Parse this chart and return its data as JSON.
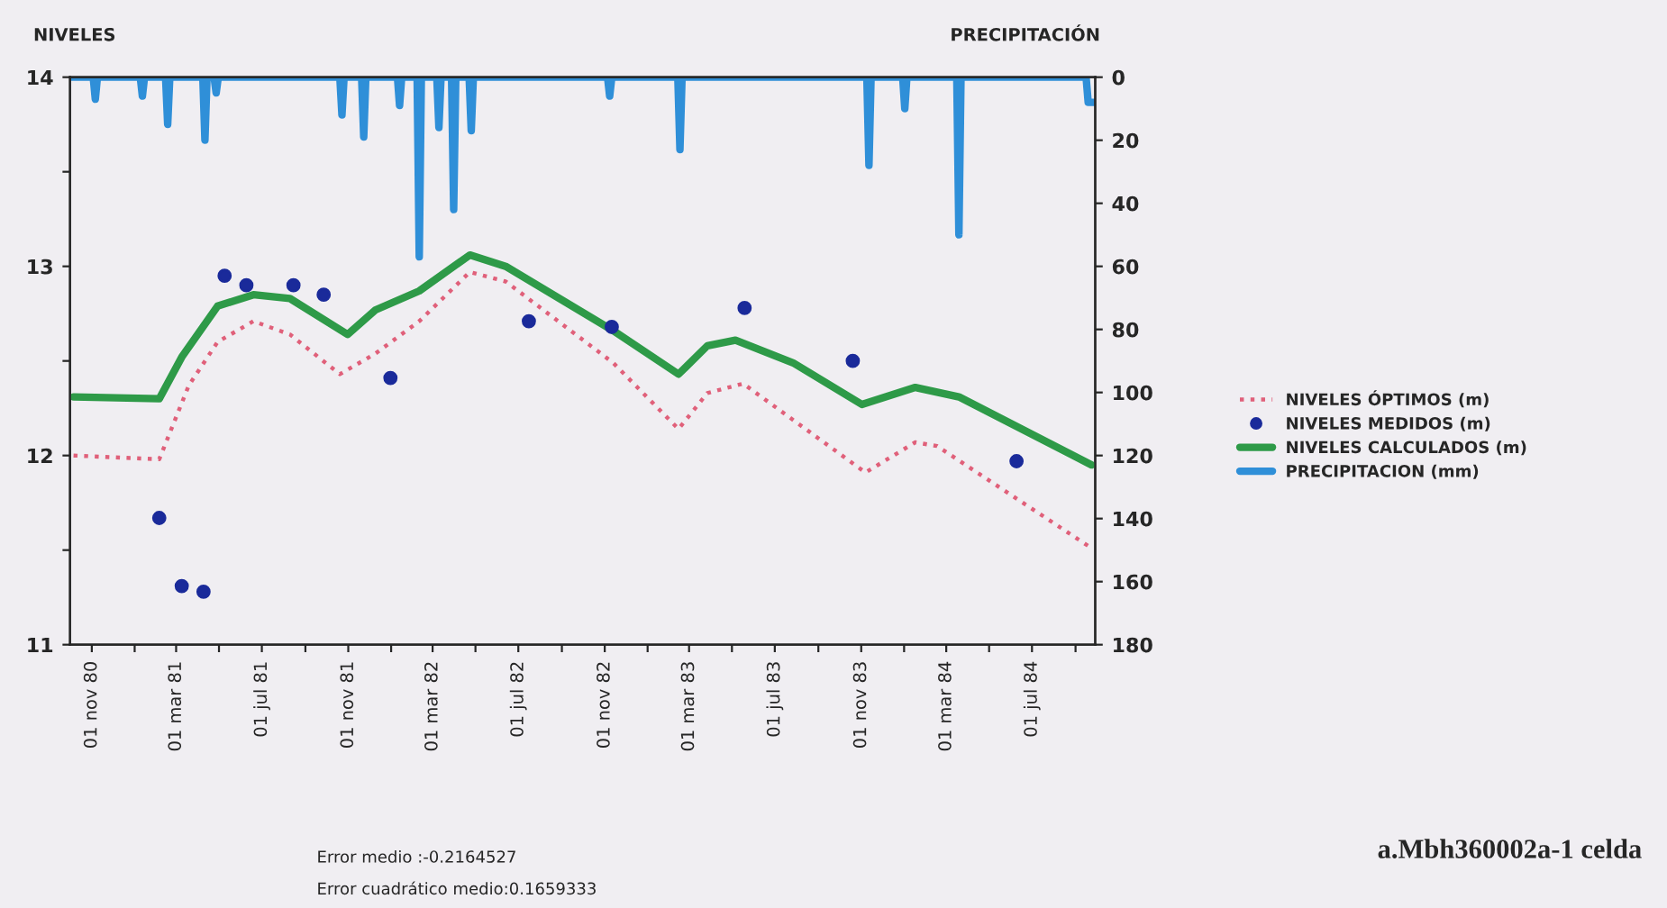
{
  "chart_data": {
    "type": "line",
    "ylabel": "NIVELES",
    "y2label": "PRECIPITACIÓN",
    "series": [
      {
        "name": "NIVELES ÓPTIMOS (m)",
        "color": "#e0607a",
        "line_style": "dotted",
        "marker": "none",
        "x": [
          "1980-10-06",
          "1981-02-05",
          "1981-03-19",
          "1981-04-29",
          "1981-06-19",
          "1981-08-10",
          "1981-10-20",
          "1981-12-10",
          "1982-02-10",
          "1982-04-23",
          "1982-06-13",
          "1982-11-13",
          "1983-02-14",
          "1983-03-27",
          "1983-05-17",
          "1983-11-07",
          "1984-01-17",
          "1984-02-17",
          "1984-09-24"
        ],
        "values": [
          12.0,
          11.98,
          12.37,
          12.6,
          12.71,
          12.64,
          12.43,
          12.54,
          12.71,
          12.97,
          12.92,
          12.49,
          12.14,
          12.33,
          12.38,
          11.91,
          12.07,
          12.05,
          11.51
        ]
      },
      {
        "name": "NIVELES MEDIDOS (m)",
        "type": "scatter",
        "color": "#1a2a9a",
        "marker": "circle",
        "x": [
          "1981-02-05",
          "1981-03-09",
          "1981-04-09",
          "1981-05-09",
          "1981-06-09",
          "1981-08-15",
          "1981-09-27",
          "1981-12-31",
          "1982-07-16",
          "1982-11-11",
          "1983-05-19",
          "1983-10-20",
          "1984-06-09"
        ],
        "values": [
          11.67,
          11.31,
          11.28,
          12.95,
          12.9,
          12.9,
          12.85,
          12.41,
          12.71,
          12.68,
          12.78,
          12.5,
          11.97
        ]
      },
      {
        "name": "NIVELES CALCULADOS (m)",
        "color": "#2e9a48",
        "line_style": "solid",
        "marker": "none",
        "x": [
          "1980-10-06",
          "1981-02-05",
          "1981-03-09",
          "1981-04-29",
          "1981-06-19",
          "1981-08-10",
          "1981-10-31",
          "1981-12-10",
          "1982-02-10",
          "1982-04-23",
          "1982-06-13",
          "1982-11-13",
          "1983-02-14",
          "1983-03-27",
          "1983-05-06",
          "1983-07-27",
          "1983-11-02",
          "1984-01-17",
          "1984-03-19",
          "1984-09-24"
        ],
        "values": [
          12.31,
          12.3,
          12.52,
          12.79,
          12.85,
          12.83,
          12.64,
          12.77,
          12.87,
          13.06,
          13.0,
          12.66,
          12.43,
          12.58,
          12.61,
          12.49,
          12.27,
          12.36,
          12.31,
          11.95
        ]
      },
      {
        "name": "PRECIPITACION (mm)",
        "axis": "y2",
        "color": "#2f8fd8",
        "line_style": "solid",
        "marker": "none",
        "x": [
          "1980-10-01",
          "1980-11-03",
          "1980-11-06",
          "1980-11-09",
          "1981-01-09",
          "1981-01-12",
          "1981-01-15",
          "1981-02-14",
          "1981-02-17",
          "1981-02-20",
          "1981-04-08",
          "1981-04-11",
          "1981-04-14",
          "1981-04-24",
          "1981-04-27",
          "1981-04-30",
          "1981-10-20",
          "1981-10-23",
          "1981-10-26",
          "1981-11-20",
          "1981-11-23",
          "1981-11-26",
          "1982-01-10",
          "1982-01-13",
          "1982-01-16",
          "1982-02-07",
          "1982-02-10",
          "1982-02-13",
          "1982-03-07",
          "1982-03-10",
          "1982-03-13",
          "1982-03-28",
          "1982-03-31",
          "1982-04-03",
          "1982-04-22",
          "1982-04-25",
          "1982-04-28",
          "1982-11-05",
          "1982-11-08",
          "1982-11-11",
          "1983-02-13",
          "1983-02-16",
          "1983-02-19",
          "1983-11-09",
          "1983-11-12",
          "1983-11-15",
          "1983-12-30",
          "1984-01-02",
          "1984-01-05",
          "1984-03-16",
          "1984-03-19",
          "1984-03-22",
          "1984-09-16",
          "1984-09-19",
          "1984-09-29"
        ],
        "values": [
          0,
          0,
          7,
          0,
          0,
          6,
          0,
          0,
          15,
          0,
          0,
          20,
          0,
          0,
          5,
          0,
          0,
          12,
          0,
          0,
          19,
          0,
          0,
          9,
          0,
          0,
          57,
          0,
          0,
          16,
          0,
          0,
          42,
          0,
          0,
          17,
          0,
          0,
          6,
          0,
          0,
          23,
          0,
          0,
          28,
          0,
          0,
          10,
          0,
          0,
          50,
          0,
          0,
          8,
          8
        ]
      }
    ],
    "xlim": [
      "1980-10-01",
      "1984-09-29"
    ],
    "xticks": [
      {
        "value": "1980-11-01",
        "label": "01 nov 80"
      },
      {
        "value": "1981-01-01",
        "label": null
      },
      {
        "value": "1981-03-01",
        "label": "01 mar 81"
      },
      {
        "value": "1981-05-01",
        "label": null
      },
      {
        "value": "1981-07-01",
        "label": "01 jul 81"
      },
      {
        "value": "1981-09-01",
        "label": null
      },
      {
        "value": "1981-11-01",
        "label": "01 nov 81"
      },
      {
        "value": "1982-01-01",
        "label": null
      },
      {
        "value": "1982-03-01",
        "label": "01 mar 82"
      },
      {
        "value": "1982-05-01",
        "label": null
      },
      {
        "value": "1982-07-01",
        "label": "01 jul 82"
      },
      {
        "value": "1982-09-01",
        "label": null
      },
      {
        "value": "1982-11-01",
        "label": "01 nov 82"
      },
      {
        "value": "1983-01-01",
        "label": null
      },
      {
        "value": "1983-03-01",
        "label": "01 mar 83"
      },
      {
        "value": "1983-05-01",
        "label": null
      },
      {
        "value": "1983-07-01",
        "label": "01 jul 83"
      },
      {
        "value": "1983-09-01",
        "label": null
      },
      {
        "value": "1983-11-01",
        "label": "01 nov 83"
      },
      {
        "value": "1984-01-01",
        "label": null
      },
      {
        "value": "1984-03-01",
        "label": "01 mar 84"
      },
      {
        "value": "1984-05-01",
        "label": null
      },
      {
        "value": "1984-07-01",
        "label": "01 jul 84"
      },
      {
        "value": "1984-09-01",
        "label": null
      }
    ],
    "ylim": [
      11,
      14
    ],
    "yticks": [
      11,
      {
        "value": 11.5,
        "label": null
      },
      12,
      {
        "value": 12.5,
        "label": null
      },
      13,
      {
        "value": 13.5,
        "label": null
      },
      14
    ],
    "y2lim": [
      180,
      0
    ],
    "y2ticks": [
      0,
      20,
      40,
      60,
      80,
      100,
      120,
      140,
      160,
      180
    ],
    "grid": false,
    "legend": "right",
    "annotations": [
      "Error medio :-0.2164527",
      "Error cuadrático medio:0.1659333",
      "a.Mbh360002a-1 celda"
    ]
  }
}
